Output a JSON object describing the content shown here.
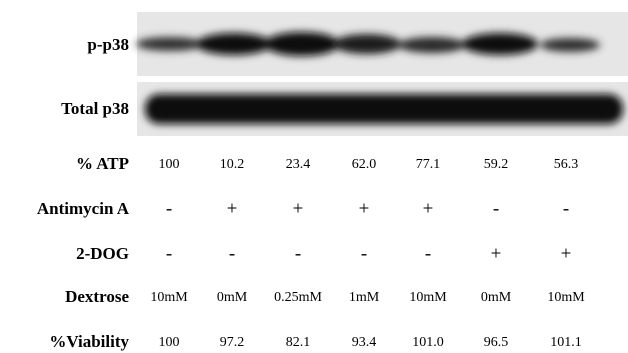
{
  "blots": [
    {
      "label": "p-p38"
    },
    {
      "label": "Total p38"
    }
  ],
  "table": {
    "rows": [
      {
        "label": "% ATP",
        "cells": [
          "100",
          "10.2",
          "23.4",
          "62.0",
          "77.1",
          "59.2",
          "56.3"
        ]
      },
      {
        "label": "Antimycin A",
        "cells": [
          "-",
          "+",
          "+",
          "+",
          "+",
          "-",
          "-"
        ]
      },
      {
        "label": "2-DOG",
        "cells": [
          "-",
          "-",
          "-",
          "-",
          "-",
          "+",
          "+"
        ]
      },
      {
        "label": "Dextrose",
        "cells": [
          "10mM",
          "0mM",
          "0.25mM",
          "1mM",
          "10mM",
          "0mM",
          "10mM"
        ]
      },
      {
        "label": "%Viability",
        "cells": [
          "100",
          "97.2",
          "82.1",
          "93.4",
          "101.0",
          "96.5",
          "101.1"
        ]
      }
    ]
  }
}
